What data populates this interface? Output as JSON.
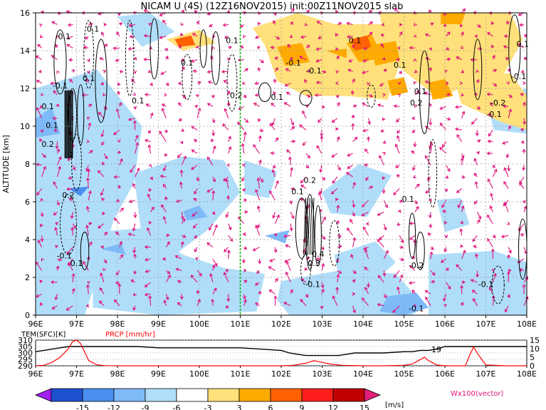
{
  "chart_data": [
    {
      "type": "heatmap",
      "title": "NICAM U (4S) (12Z16NOV2015) init:00Z11NOV2015 slab",
      "ylabel": "ALTITUDE [km]",
      "x_ticks": [
        "96E",
        "97E",
        "98E",
        "99E",
        "100E",
        "101E",
        "102E",
        "103E",
        "104E",
        "105E",
        "106E",
        "107E",
        "108E"
      ],
      "y_ticks": [
        "0",
        "2",
        "4",
        "6",
        "8",
        "10",
        "12",
        "14",
        "16"
      ],
      "xlim": [
        96,
        108
      ],
      "ylim": [
        0,
        16
      ],
      "grid": true,
      "marker_line_x": 101,
      "contour_labels": [
        {
          "text": "0.1",
          "x": 96.7,
          "y": 14.6
        },
        {
          "text": "0.1",
          "x": 97.4,
          "y": 15.0
        },
        {
          "text": "-0.1",
          "x": 96.6,
          "y": 12.0
        },
        {
          "text": "0.1",
          "x": 97.3,
          "y": 12.4
        },
        {
          "text": "0.1",
          "x": 96.3,
          "y": 10.9
        },
        {
          "text": "0.1",
          "x": 96.4,
          "y": 9.9
        },
        {
          "text": "0.2",
          "x": 96.3,
          "y": 8.9
        },
        {
          "text": "0.2",
          "x": 96.8,
          "y": 6.2
        },
        {
          "text": "-0.1",
          "x": 96.7,
          "y": 3.0
        },
        {
          "text": "0.1",
          "x": 97.0,
          "y": 2.6
        },
        {
          "text": "0.1",
          "x": 99.7,
          "y": 13.2
        },
        {
          "text": "0.1",
          "x": 98.5,
          "y": 11.2
        },
        {
          "text": "0.1",
          "x": 100.8,
          "y": 14.4
        },
        {
          "text": "0.2",
          "x": 100.9,
          "y": 11.5
        },
        {
          "text": "0.1",
          "x": 101.9,
          "y": 11.4
        },
        {
          "text": "-0.1",
          "x": 102.3,
          "y": 13.2
        },
        {
          "text": "-0.1",
          "x": 102.8,
          "y": 12.8
        },
        {
          "text": "0.1",
          "x": 103.8,
          "y": 14.4
        },
        {
          "text": "0.1",
          "x": 104.9,
          "y": 13.1
        },
        {
          "text": "0.1",
          "x": 105.4,
          "y": 11.7
        },
        {
          "text": "0.2",
          "x": 105.3,
          "y": 11.1
        },
        {
          "text": "-0.2",
          "x": 107.3,
          "y": 11.1
        },
        {
          "text": "-0.1",
          "x": 107.2,
          "y": 10.5
        },
        {
          "text": "-0.1",
          "x": 107.8,
          "y": 12.5
        },
        {
          "text": "0.1",
          "x": 107.9,
          "y": 14.2
        },
        {
          "text": "0.1",
          "x": 102.4,
          "y": 6.4
        },
        {
          "text": "0.2",
          "x": 102.7,
          "y": 7.0
        },
        {
          "text": "0.4",
          "x": 102.9,
          "y": 3.1
        },
        {
          "text": "0.3",
          "x": 102.8,
          "y": 2.6
        },
        {
          "text": "0.1",
          "x": 102.8,
          "y": 1.5
        },
        {
          "text": "0.1",
          "x": 105.1,
          "y": 6.0
        },
        {
          "text": "-0.2",
          "x": 105.3,
          "y": 2.5
        },
        {
          "text": "-0.1",
          "x": 107.0,
          "y": 1.5
        },
        {
          "text": "-0.1",
          "x": 105.3,
          "y": 0.2
        }
      ]
    },
    {
      "type": "line",
      "series": [
        {
          "name": "TEM(SFC)[K]",
          "color": "#000000",
          "x": [
            96,
            96.2,
            96.4,
            96.6,
            96.8,
            97,
            97.2,
            97.4,
            97.6,
            97.8,
            98,
            98.5,
            99,
            99.5,
            100,
            100.5,
            101,
            101.5,
            102,
            102.2,
            102.4,
            102.6,
            102.8,
            103,
            103.2,
            103.4,
            103.6,
            103.8,
            104,
            104.5,
            105,
            105.2,
            105.4,
            105.6,
            105.8,
            106,
            106.5,
            107,
            107.5,
            108
          ],
          "y": [
            301,
            302,
            303,
            304,
            305,
            305,
            305,
            305,
            305,
            305,
            305,
            305,
            304,
            304,
            304,
            304,
            304,
            303,
            302,
            300,
            299,
            298,
            298,
            298,
            298,
            298,
            299,
            300,
            300,
            300,
            301,
            301,
            302,
            302,
            303,
            305,
            305,
            305,
            305,
            305
          ]
        },
        {
          "name": "PRCP [mm/hr]",
          "color": "#ff0000",
          "x": [
            96,
            96.2,
            96.4,
            96.6,
            96.8,
            96.9,
            97,
            97.1,
            97.2,
            97.3,
            97.5,
            97.7,
            98,
            99,
            100,
            101,
            102,
            102.3,
            102.6,
            102.8,
            103,
            103.2,
            103.5,
            104,
            104.5,
            105,
            105.2,
            105.35,
            105.5,
            105.6,
            105.8,
            106,
            106.5,
            106.6,
            106.7,
            106.8,
            107,
            107.5,
            108
          ],
          "y": [
            0,
            0.3,
            2,
            5,
            10,
            14,
            15,
            13,
            8,
            3,
            0.6,
            0.1,
            0,
            0,
            0,
            0,
            0,
            0.3,
            1.5,
            3,
            2,
            1,
            0.3,
            0,
            0,
            0.3,
            1,
            3,
            5,
            3,
            0.5,
            0,
            0,
            6,
            11,
            7,
            0.5,
            0,
            0
          ]
        }
      ],
      "left_axis_label": "TEM(SFC)[K]",
      "right_axis_label": "PRCP [mm/hr]",
      "left_ticks": [
        "310",
        "305",
        "300",
        "295",
        "290"
      ],
      "right_ticks": [
        "15",
        "10",
        "5",
        "0"
      ],
      "ylim_left": [
        290,
        310
      ],
      "ylim_right": [
        0,
        15
      ],
      "x_ticks": [
        "96E",
        "97E",
        "98E",
        "99E",
        "100E",
        "101E",
        "102E",
        "103E",
        "104E",
        "105E",
        "106E",
        "107E",
        "108E"
      ],
      "annotation": "19"
    }
  ],
  "colorbar": {
    "ticks": [
      "-15",
      "-12",
      "-9",
      "-6",
      "-3",
      "3",
      "6",
      "9",
      "12",
      "15"
    ],
    "unit": "[m/s]",
    "colors": [
      "#a020f0",
      "#1e50d2",
      "#4a8ff0",
      "#7fbaf8",
      "#b0defa",
      "#ffffff",
      "#ffe07a",
      "#ffaa00",
      "#ff6000",
      "#ff1e1e",
      "#c00000",
      "#e0207a"
    ]
  },
  "vector_label": "Wx100(vector)",
  "colors": {
    "vector": "#e0107a",
    "green_line": "#00b000",
    "precip": "#ff0000",
    "temp": "#000000"
  }
}
